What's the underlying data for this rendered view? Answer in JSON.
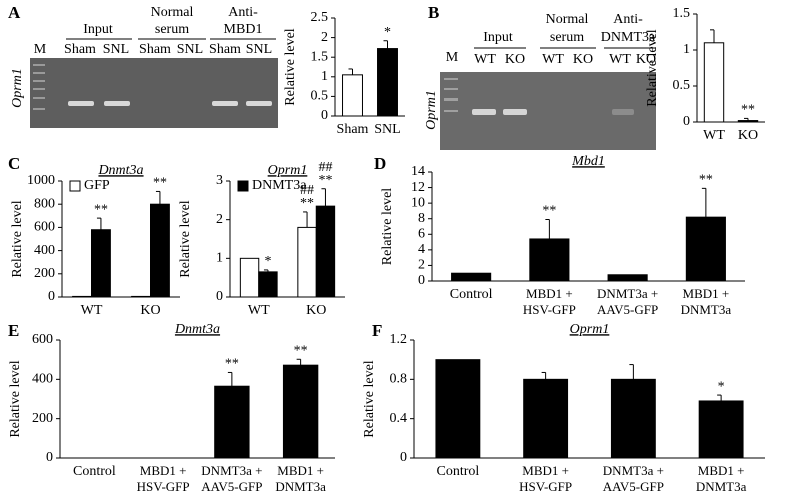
{
  "panels": [
    "A",
    "B",
    "C",
    "D",
    "E",
    "F"
  ],
  "gels": [
    {
      "marker": "M",
      "gene": "Oprm1",
      "groups": [
        [
          "Input"
        ],
        [
          "Normal",
          "serum"
        ],
        [
          "Anti-",
          "MBD1"
        ]
      ],
      "lanes": [
        "Sham",
        "SNL",
        "Sham",
        "SNL",
        "Sham",
        "SNL"
      ]
    },
    {
      "marker": "M",
      "gene": "Oprm1",
      "groups": [
        [
          "Input"
        ],
        [
          "Normal",
          "serum"
        ],
        [
          "Anti-",
          "DNMT3a"
        ]
      ],
      "lanes": [
        "WT",
        "KO",
        "WT",
        "KO",
        "WT",
        "KO"
      ]
    }
  ],
  "chart_data": [
    {
      "type": "bar",
      "categories": [
        "Sham",
        "SNL"
      ],
      "values": [
        1.05,
        1.72
      ],
      "errors": [
        0.15,
        0.2
      ],
      "colors": [
        "#ffffff",
        "#000000"
      ],
      "annotations": [
        null,
        "*"
      ],
      "ylabel": "Relative level",
      "ylim": [
        0,
        2.5
      ],
      "yticks": [
        0,
        0.5,
        1,
        1.5,
        2,
        2.5
      ]
    },
    {
      "type": "bar",
      "categories": [
        "WT",
        "KO"
      ],
      "values": [
        1.1,
        0.02
      ],
      "errors": [
        0.18,
        0.03
      ],
      "colors": [
        "#ffffff",
        "#000000"
      ],
      "annotations": [
        null,
        "**"
      ],
      "ylabel": "Relative level",
      "ylim": [
        0,
        1.5
      ],
      "yticks": [
        0,
        0.5,
        1,
        1.5
      ]
    },
    {
      "type": "bar",
      "title": "Dnmt3a",
      "categories": [
        "WT",
        "KO"
      ],
      "ylabel": "Relative level",
      "ylim": [
        0,
        1000
      ],
      "yticks": [
        0,
        200,
        400,
        600,
        800,
        1000
      ],
      "series": [
        {
          "name": "GFP",
          "color": "#ffffff",
          "values": [
            5,
            5
          ]
        },
        {
          "color": "#000000",
          "values": [
            580,
            800
          ],
          "errors": [
            100,
            110
          ],
          "annotations": [
            "**",
            "**"
          ]
        }
      ]
    },
    {
      "type": "bar",
      "title": "Oprm1",
      "categories": [
        "WT",
        "KO"
      ],
      "ylabel": "Relative level",
      "ylim": [
        0,
        3
      ],
      "yticks": [
        0,
        1,
        2,
        3
      ],
      "series": [
        {
          "color": "#ffffff",
          "values": [
            1,
            1.8
          ],
          "errors": [
            null,
            0.4
          ],
          "annotations": [
            null,
            [
              "##",
              "**"
            ]
          ]
        },
        {
          "name": "DNMT3a",
          "color": "#000000",
          "values": [
            0.65,
            2.35
          ],
          "errors": [
            0.05,
            0.45
          ],
          "annotations": [
            "*",
            [
              "##",
              "**"
            ]
          ]
        }
      ]
    },
    {
      "type": "bar",
      "title": "Mbd1",
      "categories": [
        "Control",
        [
          "MBD1 +",
          "HSV-GFP"
        ],
        [
          "DNMT3a +",
          "AAV5-GFP"
        ],
        [
          "MBD1 +",
          "DNMT3a"
        ]
      ],
      "values": [
        1,
        5.4,
        0.8,
        8.2
      ],
      "errors": [
        null,
        2.5,
        null,
        3.7
      ],
      "color": "#000000",
      "annotations": [
        null,
        "**",
        null,
        "**"
      ],
      "ylabel": "Relative level",
      "ylim": [
        0,
        14
      ],
      "yticks": [
        0,
        2,
        4,
        6,
        8,
        10,
        12,
        14
      ]
    },
    {
      "type": "bar",
      "title": "Dnmt3a",
      "categories": [
        "Control",
        [
          "MBD1 +",
          "HSV-GFP"
        ],
        [
          "DNMT3a +",
          "AAV5-GFP"
        ],
        [
          "MBD1 +",
          "DNMT3a"
        ]
      ],
      "values": [
        0,
        0,
        365,
        472
      ],
      "errors": [
        null,
        null,
        70,
        30
      ],
      "color": "#000000",
      "annotations": [
        null,
        null,
        "**",
        "**"
      ],
      "ylabel": "Relative level",
      "ylim": [
        0,
        600
      ],
      "yticks": [
        0,
        200,
        400,
        600
      ]
    },
    {
      "type": "bar",
      "title": "Oprm1",
      "categories": [
        "Control",
        [
          "MBD1 +",
          "HSV-GFP"
        ],
        [
          "DNMT3a +",
          "AAV5-GFP"
        ],
        [
          "MBD1 +",
          "DNMT3a"
        ]
      ],
      "values": [
        1,
        0.8,
        0.8,
        0.58
      ],
      "errors": [
        null,
        0.07,
        0.15,
        0.06
      ],
      "color": "#000000",
      "annotations": [
        null,
        null,
        null,
        "*"
      ],
      "ylabel": "Relative level",
      "ylim": [
        0,
        1.2
      ],
      "yticks": [
        0,
        0.4,
        0.8,
        1.2
      ]
    }
  ]
}
